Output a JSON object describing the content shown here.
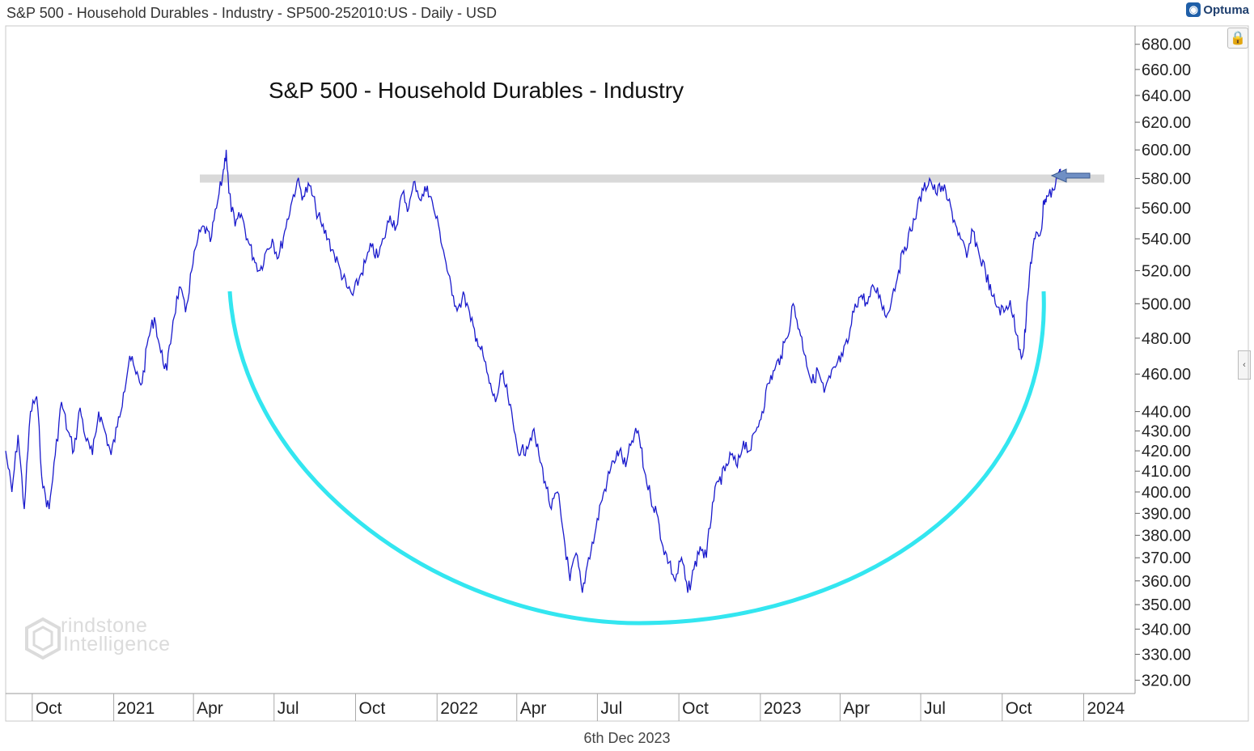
{
  "header": {
    "title": "S&P 500 - Household Durables - Industry - SP500-252010:US - Daily - USD"
  },
  "logo": {
    "text": "Optuma"
  },
  "footer": {
    "date": "6th Dec 2023"
  },
  "watermark": {
    "line1": "rindstone",
    "line2": "Intelligence"
  },
  "colors": {
    "price": "#1a1acc",
    "arc": "#33e6f0",
    "band": "#d9d9d9",
    "arrow": "#6f8fc4"
  },
  "icons": [
    "lock-icon",
    "chevron-left-icon",
    "left-arrow-icon"
  ],
  "chart_data": {
    "type": "line",
    "title": "S&P 500 - Household Durables - Industry",
    "scale": "log",
    "ylim": [
      315,
      695
    ],
    "xlim": [
      "2020-09-01",
      "2024-02-28"
    ],
    "y_ticks": [
      "320.00",
      "330.00",
      "340.00",
      "350.00",
      "360.00",
      "370.00",
      "380.00",
      "390.00",
      "400.00",
      "410.00",
      "420.00",
      "430.00",
      "440.00",
      "460.00",
      "480.00",
      "500.00",
      "520.00",
      "540.00",
      "560.00",
      "580.00",
      "600.00",
      "620.00",
      "640.00",
      "660.00",
      "680.00"
    ],
    "x_ticks": [
      {
        "label": "Oct",
        "date": "2020-10-01"
      },
      {
        "label": "2021",
        "date": "2021-01-01"
      },
      {
        "label": "Apr",
        "date": "2021-04-01"
      },
      {
        "label": "Jul",
        "date": "2021-07-01"
      },
      {
        "label": "Oct",
        "date": "2021-10-01"
      },
      {
        "label": "2022",
        "date": "2022-01-01"
      },
      {
        "label": "Apr",
        "date": "2022-04-01"
      },
      {
        "label": "Jul",
        "date": "2022-07-01"
      },
      {
        "label": "Oct",
        "date": "2022-10-01"
      },
      {
        "label": "2023",
        "date": "2023-01-01"
      },
      {
        "label": "Apr",
        "date": "2023-04-01"
      },
      {
        "label": "Jul",
        "date": "2023-07-01"
      },
      {
        "label": "Oct",
        "date": "2023-10-01"
      },
      {
        "label": "2024",
        "date": "2024-01-01"
      }
    ],
    "series": [
      {
        "points": [
          [
            "2020-09-01",
            420
          ],
          [
            "2020-09-08",
            400
          ],
          [
            "2020-09-15",
            428
          ],
          [
            "2020-09-22",
            392
          ],
          [
            "2020-09-29",
            440
          ],
          [
            "2020-10-06",
            448
          ],
          [
            "2020-10-13",
            402
          ],
          [
            "2020-10-20",
            392
          ],
          [
            "2020-10-27",
            418
          ],
          [
            "2020-11-03",
            445
          ],
          [
            "2020-11-10",
            430
          ],
          [
            "2020-11-17",
            420
          ],
          [
            "2020-11-24",
            442
          ],
          [
            "2020-12-01",
            425
          ],
          [
            "2020-12-08",
            418
          ],
          [
            "2020-12-15",
            440
          ],
          [
            "2020-12-22",
            430
          ],
          [
            "2020-12-29",
            418
          ],
          [
            "2021-01-05",
            432
          ],
          [
            "2021-01-12",
            450
          ],
          [
            "2021-01-19",
            470
          ],
          [
            "2021-01-26",
            460
          ],
          [
            "2021-02-02",
            455
          ],
          [
            "2021-02-09",
            480
          ],
          [
            "2021-02-16",
            492
          ],
          [
            "2021-02-23",
            472
          ],
          [
            "2021-03-02",
            462
          ],
          [
            "2021-03-09",
            490
          ],
          [
            "2021-03-16",
            510
          ],
          [
            "2021-03-23",
            495
          ],
          [
            "2021-03-30",
            520
          ],
          [
            "2021-04-06",
            540
          ],
          [
            "2021-04-13",
            548
          ],
          [
            "2021-04-20",
            538
          ],
          [
            "2021-04-27",
            560
          ],
          [
            "2021-05-04",
            582
          ],
          [
            "2021-05-08",
            600
          ],
          [
            "2021-05-11",
            570
          ],
          [
            "2021-05-18",
            548
          ],
          [
            "2021-05-25",
            556
          ],
          [
            "2021-06-01",
            540
          ],
          [
            "2021-06-08",
            528
          ],
          [
            "2021-06-15",
            520
          ],
          [
            "2021-06-22",
            532
          ],
          [
            "2021-06-29",
            540
          ],
          [
            "2021-07-06",
            528
          ],
          [
            "2021-07-13",
            545
          ],
          [
            "2021-07-20",
            562
          ],
          [
            "2021-07-27",
            578
          ],
          [
            "2021-08-03",
            568
          ],
          [
            "2021-08-10",
            575
          ],
          [
            "2021-08-17",
            560
          ],
          [
            "2021-08-24",
            548
          ],
          [
            "2021-08-31",
            540
          ],
          [
            "2021-09-07",
            530
          ],
          [
            "2021-09-14",
            520
          ],
          [
            "2021-09-21",
            510
          ],
          [
            "2021-09-28",
            505
          ],
          [
            "2021-10-05",
            515
          ],
          [
            "2021-10-12",
            525
          ],
          [
            "2021-10-19",
            535
          ],
          [
            "2021-10-26",
            528
          ],
          [
            "2021-11-02",
            540
          ],
          [
            "2021-11-09",
            555
          ],
          [
            "2021-11-16",
            548
          ],
          [
            "2021-11-23",
            570
          ],
          [
            "2021-11-30",
            560
          ],
          [
            "2021-12-07",
            578
          ],
          [
            "2021-12-14",
            565
          ],
          [
            "2021-12-21",
            575
          ],
          [
            "2021-12-28",
            560
          ],
          [
            "2022-01-04",
            545
          ],
          [
            "2022-01-11",
            525
          ],
          [
            "2022-01-18",
            505
          ],
          [
            "2022-01-25",
            498
          ],
          [
            "2022-02-01",
            505
          ],
          [
            "2022-02-08",
            490
          ],
          [
            "2022-02-15",
            480
          ],
          [
            "2022-02-22",
            470
          ],
          [
            "2022-03-01",
            455
          ],
          [
            "2022-03-08",
            445
          ],
          [
            "2022-03-15",
            460
          ],
          [
            "2022-03-22",
            448
          ],
          [
            "2022-03-29",
            430
          ],
          [
            "2022-04-05",
            418
          ],
          [
            "2022-04-12",
            422
          ],
          [
            "2022-04-19",
            430
          ],
          [
            "2022-04-26",
            418
          ],
          [
            "2022-05-03",
            405
          ],
          [
            "2022-05-10",
            392
          ],
          [
            "2022-05-17",
            400
          ],
          [
            "2022-05-24",
            380
          ],
          [
            "2022-05-31",
            360
          ],
          [
            "2022-06-07",
            372
          ],
          [
            "2022-06-14",
            355
          ],
          [
            "2022-06-21",
            370
          ],
          [
            "2022-06-28",
            380
          ],
          [
            "2022-07-05",
            395
          ],
          [
            "2022-07-12",
            405
          ],
          [
            "2022-07-19",
            415
          ],
          [
            "2022-07-26",
            420
          ],
          [
            "2022-08-02",
            412
          ],
          [
            "2022-08-09",
            425
          ],
          [
            "2022-08-16",
            430
          ],
          [
            "2022-08-23",
            410
          ],
          [
            "2022-08-30",
            398
          ],
          [
            "2022-09-06",
            390
          ],
          [
            "2022-09-13",
            375
          ],
          [
            "2022-09-20",
            368
          ],
          [
            "2022-09-27",
            360
          ],
          [
            "2022-10-04",
            370
          ],
          [
            "2022-10-11",
            355
          ],
          [
            "2022-10-18",
            365
          ],
          [
            "2022-10-25",
            375
          ],
          [
            "2022-11-01",
            370
          ],
          [
            "2022-11-08",
            395
          ],
          [
            "2022-11-15",
            405
          ],
          [
            "2022-11-22",
            410
          ],
          [
            "2022-11-29",
            418
          ],
          [
            "2022-12-06",
            412
          ],
          [
            "2022-12-13",
            425
          ],
          [
            "2022-12-20",
            420
          ],
          [
            "2022-12-27",
            430
          ],
          [
            "2023-01-03",
            440
          ],
          [
            "2023-01-10",
            455
          ],
          [
            "2023-01-17",
            462
          ],
          [
            "2023-01-24",
            470
          ],
          [
            "2023-01-31",
            480
          ],
          [
            "2023-02-07",
            500
          ],
          [
            "2023-02-14",
            485
          ],
          [
            "2023-02-21",
            470
          ],
          [
            "2023-02-28",
            455
          ],
          [
            "2023-03-07",
            462
          ],
          [
            "2023-03-14",
            450
          ],
          [
            "2023-03-21",
            458
          ],
          [
            "2023-03-28",
            465
          ],
          [
            "2023-04-04",
            470
          ],
          [
            "2023-04-11",
            480
          ],
          [
            "2023-04-18",
            500
          ],
          [
            "2023-04-25",
            505
          ],
          [
            "2023-05-02",
            500
          ],
          [
            "2023-05-09",
            510
          ],
          [
            "2023-05-16",
            505
          ],
          [
            "2023-05-23",
            492
          ],
          [
            "2023-05-30",
            505
          ],
          [
            "2023-06-06",
            520
          ],
          [
            "2023-06-13",
            535
          ],
          [
            "2023-06-20",
            545
          ],
          [
            "2023-06-27",
            560
          ],
          [
            "2023-07-04",
            572
          ],
          [
            "2023-07-11",
            580
          ],
          [
            "2023-07-18",
            570
          ],
          [
            "2023-07-25",
            575
          ],
          [
            "2023-08-01",
            565
          ],
          [
            "2023-08-08",
            552
          ],
          [
            "2023-08-15",
            540
          ],
          [
            "2023-08-22",
            528
          ],
          [
            "2023-08-29",
            545
          ],
          [
            "2023-09-05",
            530
          ],
          [
            "2023-09-12",
            520
          ],
          [
            "2023-09-19",
            505
          ],
          [
            "2023-09-26",
            498
          ],
          [
            "2023-10-03",
            495
          ],
          [
            "2023-10-10",
            502
          ],
          [
            "2023-10-17",
            482
          ],
          [
            "2023-10-24",
            470
          ],
          [
            "2023-10-28",
            490
          ],
          [
            "2023-11-02",
            525
          ],
          [
            "2023-11-07",
            540
          ],
          [
            "2023-11-14",
            545
          ],
          [
            "2023-11-17",
            565
          ],
          [
            "2023-11-21",
            568
          ],
          [
            "2023-11-28",
            572
          ],
          [
            "2023-12-04",
            585
          ],
          [
            "2023-12-06",
            586
          ]
        ]
      }
    ],
    "annotations": [
      {
        "type": "resistance-band",
        "y": 580
      },
      {
        "type": "rounding-bottom-arc"
      },
      {
        "type": "arrow",
        "y": 582
      }
    ],
    "grid": false,
    "legend": "none"
  }
}
